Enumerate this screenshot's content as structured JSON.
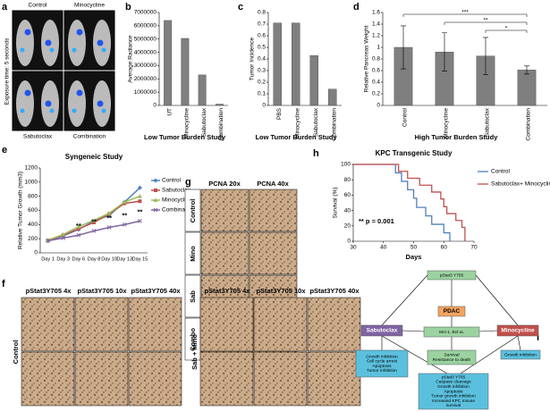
{
  "chart_data": [
    {
      "type": "bar",
      "panel": "b",
      "ylabel": "Average Radiance",
      "xlabel": "Low Tumor Burden Study",
      "categories": [
        "UT",
        "Minocycline",
        "Sabutoclax",
        "Combination"
      ],
      "values": [
        6400000,
        5050000,
        2300000,
        100000
      ],
      "color": "#7f7f7f",
      "ylim": [
        0,
        7000000
      ],
      "yticks": [
        0,
        1000000,
        2000000,
        3000000,
        4000000,
        5000000,
        6000000,
        7000000
      ]
    },
    {
      "type": "bar",
      "panel": "c",
      "ylabel": "Tumor Incidence",
      "xlabel": "Low Tumor Burden Study",
      "categories": [
        "PBS",
        "Minocycline",
        "Sabutoclax",
        "Combination"
      ],
      "values": [
        0.71,
        0.71,
        0.43,
        0.14
      ],
      "color": "#7f7f7f",
      "ylim": [
        0,
        0.8
      ],
      "yticks": [
        0,
        0.1,
        0.2,
        0.3,
        0.4,
        0.5,
        0.6,
        0.7,
        0.8
      ]
    },
    {
      "type": "bar",
      "panel": "d",
      "ylabel": "Relative Pancreas Weight",
      "xlabel": "High Tumor Burden Study",
      "categories": [
        "Control",
        "Minocycline",
        "Sabutoclax",
        "Combination"
      ],
      "values": [
        1.0,
        0.92,
        0.85,
        0.61
      ],
      "errors": [
        0.37,
        0.33,
        0.32,
        0.07
      ],
      "color": "#7f7f7f",
      "ylim": [
        0,
        1.6
      ],
      "yticks": [
        0,
        0.2,
        0.4,
        0.6,
        0.8,
        1,
        1.2,
        1.4,
        1.6
      ],
      "significance": [
        "***",
        "**",
        "*"
      ]
    },
    {
      "type": "line",
      "panel": "e",
      "title": "Syngeneic Study",
      "ylabel": "Relative Tumor Growth (mm3)",
      "categories": [
        "Day 1",
        "Day 3",
        "Day 6",
        "Day 8",
        "Day 10",
        "Day 13",
        "Day 15"
      ],
      "ylim": [
        0,
        1200
      ],
      "yticks": [
        0,
        200,
        400,
        600,
        800,
        1000,
        1200
      ],
      "series": [
        {
          "name": "Control",
          "color": "#4f81bd",
          "values": [
            170,
            240,
            330,
            450,
            530,
            720,
            920
          ]
        },
        {
          "name": "Sabutoclax",
          "color": "#c0504d",
          "values": [
            175,
            250,
            340,
            430,
            550,
            700,
            730
          ]
        },
        {
          "name": "Minocycline",
          "color": "#9bbb59",
          "values": [
            180,
            260,
            370,
            460,
            560,
            720,
            800
          ]
        },
        {
          "name": "Combination",
          "color": "#8064a2",
          "values": [
            170,
            210,
            250,
            310,
            360,
            400,
            450
          ]
        }
      ],
      "annotations": [
        "**",
        "**",
        "**",
        "**",
        "**"
      ]
    },
    {
      "type": "step",
      "panel": "h",
      "title": "KPC Transgenic Study",
      "ylabel": "Survival (%)",
      "xlabel": "Days",
      "xlim": [
        30,
        70
      ],
      "xticks": [
        30,
        40,
        50,
        60,
        70
      ],
      "ylim": [
        0,
        100
      ],
      "yticks": [
        0,
        20,
        40,
        60,
        80,
        100
      ],
      "annotation": "** p = 0.001",
      "series": [
        {
          "name": "Control",
          "color": "#4f81bd",
          "x": [
            30,
            44,
            46,
            48,
            50,
            51,
            54,
            56,
            60,
            62
          ],
          "values": [
            100,
            89,
            78,
            67,
            56,
            44,
            33,
            22,
            11,
            0
          ]
        },
        {
          "name": "Sabutoclax+ Minocycline",
          "color": "#c0504d",
          "x": [
            30,
            45,
            48,
            52,
            56,
            59,
            60,
            61,
            64,
            66,
            67
          ],
          "values": [
            100,
            91,
            82,
            73,
            64,
            55,
            45,
            36,
            27,
            18,
            0
          ]
        }
      ]
    }
  ],
  "panel_a": {
    "label": "a",
    "exposure": "Exposure time: 5 seconds",
    "groups": [
      "Control",
      "Minocycline",
      "Sabutoclax",
      "Combination"
    ]
  },
  "panel_f": {
    "label": "f",
    "columns": [
      "pStat3Y705 4x",
      "pStat3Y705 10x",
      "pStat3Y705 40x"
    ],
    "rows": [
      "Control",
      "Sab + Mino"
    ]
  },
  "panel_g": {
    "label": "g",
    "columns": [
      "PCNA 20x",
      "PCNA 40x"
    ],
    "rows": [
      "Control",
      "Mino",
      "Sab",
      "Combo"
    ]
  },
  "panel_i": {
    "label": "i",
    "nodes": [
      {
        "lines": [
          "pStat3 Y705"
        ]
      },
      {
        "lines": [
          "PDAC"
        ]
      },
      {
        "lines": [
          "Sabutoclax"
        ]
      },
      {
        "lines": [
          "Minocycline"
        ]
      },
      {
        "lines": [
          "Mcl-1, Bcl-xL"
        ]
      },
      {
        "lines": [
          "Survival",
          "Resistance to death"
        ]
      },
      {
        "lines": [
          "Growth inhibition",
          "Cell cycle arrest",
          "Apoptosis",
          "Tumor inhibition"
        ]
      },
      {
        "lines": [
          "Growth inhibition"
        ]
      },
      {
        "lines": [
          "pStat3 Y705",
          "Caspase cleavage",
          "Growth inhibition",
          "Apoptosis",
          "Tumor growth inhibition",
          "Increased KPC mouse",
          "survival"
        ]
      }
    ]
  }
}
